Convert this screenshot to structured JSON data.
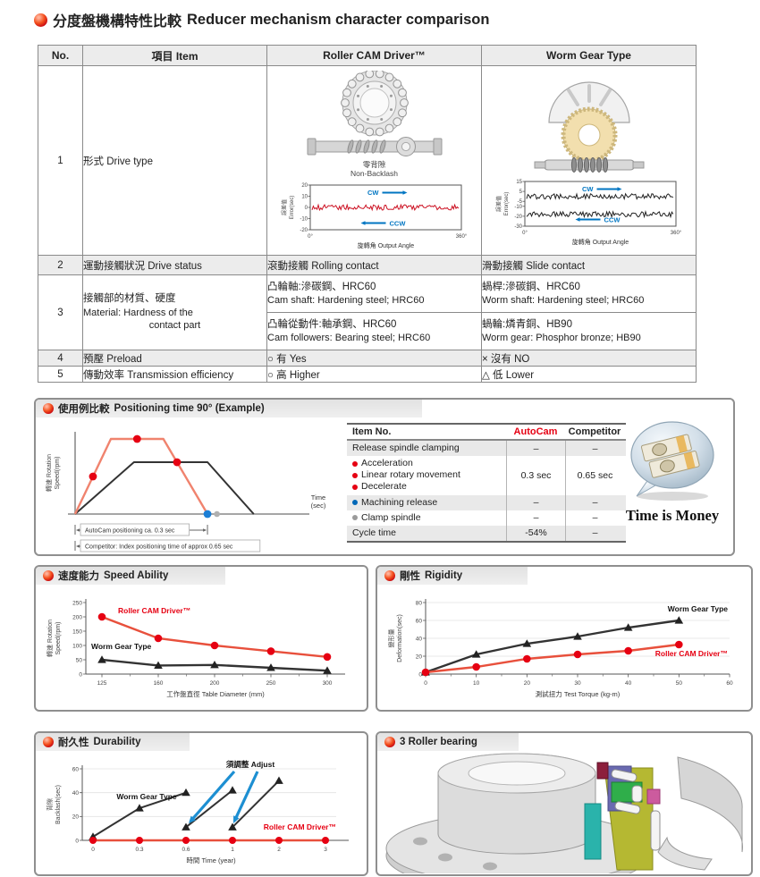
{
  "page": {
    "title_zh": "分度盤機構特性比較",
    "title_en": "Reducer mechanism character comparison"
  },
  "colors": {
    "accent_red": "#e60012",
    "arrow_blue": "#0075c2",
    "salmon": "#f0836e",
    "row_gray": "#ececec"
  },
  "comparison_table": {
    "headers": {
      "no": "No.",
      "item": "項目 Item",
      "roller": "Roller CAM Driver™",
      "worm": "Worm Gear Type"
    },
    "row1": {
      "no": "1",
      "item": "形式 Drive type",
      "roller_caption_zh": "零背隙",
      "roller_caption_en": "Non-Backlash"
    },
    "row2": {
      "no": "2",
      "item": "運動接觸狀況 Drive status",
      "roller": "滾動接觸 Rolling contact",
      "worm": "滑動接觸 Slide contact"
    },
    "row3": {
      "no": "3",
      "item_zh": "接觸部的材質、硬度",
      "item_en1": "Material: Hardness of the",
      "item_en2": "contact part",
      "roller_a_zh": "凸輪軸:滲碳鋼、HRC60",
      "roller_a_en": "Cam shaft: Hardening steel; HRC60",
      "worm_a_zh": "蝸桿:滲碳鋼、HRC60",
      "worm_a_en": "Worm shaft: Hardening steel; HRC60",
      "roller_b_zh": "凸輪從動件:軸承鋼、HRC60",
      "roller_b_en": "Cam followers: Bearing steel; HRC60",
      "worm_b_zh": "蝸輪:燐青銅、HB90",
      "worm_b_en": "Worm gear: Phosphor bronze; HB90"
    },
    "row4": {
      "no": "4",
      "item": "預壓 Preload",
      "roller": "○ 有 Yes",
      "worm": "× 沒有 NO"
    },
    "row5": {
      "no": "5",
      "item": "傳動效率 Transmission efficiency",
      "roller": "○ 高 Higher",
      "worm": "△ 低 Lower"
    }
  },
  "sections": {
    "positioning": {
      "zh": "使用例比較",
      "en": "Positioning time 90° (Example)"
    },
    "speed": {
      "zh": "速度能力",
      "en": "Speed Ability"
    },
    "rigidity": {
      "zh": "剛性",
      "en": "Rigidity"
    },
    "durability": {
      "zh": "耐久性",
      "en": "Durability"
    },
    "bearing": {
      "zh": "",
      "en": "3 Roller bearing"
    }
  },
  "positioning": {
    "table": {
      "headers": {
        "item": "Item No.",
        "autocam": "AutoCam",
        "competitor": "Competitor"
      },
      "rows": [
        {
          "labels": [
            {
              "text": "Release spindle clamping",
              "bullet": ""
            }
          ],
          "autocam": "–",
          "competitor": "–",
          "shaded": true
        },
        {
          "labels": [
            {
              "text": "Acceleration",
              "bullet": "#e60012"
            },
            {
              "text": "Linear rotary movement",
              "bullet": "#e60012"
            },
            {
              "text": "Decelerate",
              "bullet": "#e60012"
            }
          ],
          "autocam": "0.3 sec",
          "competitor": "0.65 sec",
          "shaded": false
        },
        {
          "labels": [
            {
              "text": "Machining release",
              "bullet": "#0068b7"
            }
          ],
          "autocam": "–",
          "competitor": "–",
          "shaded": true
        },
        {
          "labels": [
            {
              "text": "Clamp spindle",
              "bullet": "#9b9b9b"
            }
          ],
          "autocam": "–",
          "competitor": "–",
          "shaded": false
        },
        {
          "labels": [
            {
              "text": "Cycle time",
              "bullet": ""
            }
          ],
          "autocam": "-54%",
          "competitor": "–",
          "shaded": true
        }
      ]
    },
    "money_caption": "Time is Money"
  },
  "chart_data": {
    "roller_error": {
      "type": "line",
      "xlabel": "旋轉角 Output Angle",
      "ylabel_lines": [
        "誤差值",
        "Error(sec)"
      ],
      "x_ticks": [
        "0°",
        "360°"
      ],
      "ylim": [
        -20,
        20
      ],
      "y_ticks": [
        20,
        10,
        0,
        -10,
        -20
      ],
      "cw_label": "CW",
      "ccw_label": "CCW",
      "series": [
        {
          "name": "error",
          "mean": 0,
          "amplitude": 2,
          "color": "#cc1122"
        }
      ]
    },
    "worm_error": {
      "type": "line",
      "xlabel": "旋轉角 Output Angle",
      "ylabel_lines": [
        "誤差值",
        "Error(sec)"
      ],
      "x_ticks": [
        "0°",
        "360°"
      ],
      "ylim": [
        -30,
        15
      ],
      "y_ticks": [
        15,
        5,
        -5,
        -10,
        -20,
        -30
      ],
      "cw_label": "CW",
      "ccw_label": "CCW",
      "series": [
        {
          "name": "cw-error",
          "mean": 0,
          "amplitude": 2,
          "color": "#222222"
        },
        {
          "name": "ccw-error",
          "mean": -18,
          "amplitude": 2,
          "color": "#222222"
        }
      ]
    },
    "positioning": {
      "type": "line",
      "ylabel_lines": [
        "轉速 Rotation",
        "Speed(rpm)"
      ],
      "xlabel_lines": [
        "Time",
        "(sec)"
      ],
      "autocam": {
        "name": "AutoCam",
        "color": "#f0836e",
        "profile": [
          [
            0,
            0
          ],
          [
            0.17,
            1
          ],
          [
            0.42,
            1
          ],
          [
            0.63,
            0
          ]
        ],
        "dot_color": "#e60012",
        "dots": [
          [
            0.085,
            0.5
          ],
          [
            0.295,
            1
          ],
          [
            0.485,
            0.69
          ]
        ]
      },
      "competitor": {
        "name": "Competitor",
        "color": "#333333",
        "profile": [
          [
            0,
            0
          ],
          [
            0.28,
            0.69
          ],
          [
            0.63,
            0.69
          ],
          [
            0.85,
            0
          ]
        ]
      },
      "machining_dot": {
        "color": "#1c7fd6",
        "x": 0.63
      },
      "clamp_dot": {
        "color": "#b0b0b0",
        "x": 0.675
      },
      "annotations": [
        {
          "text": "AutoCam positioning ca. 0.3 sec",
          "x_end": 0.63
        },
        {
          "text": "Competitor: Index positioning time of approx 0.65 sec",
          "x_end": 0.85
        }
      ]
    },
    "speed": {
      "type": "line",
      "xlabel": "工作盤直徑 Table Diameter (mm)",
      "ylabel_lines": [
        "轉速 Rotation",
        "Speed(rpm)"
      ],
      "categories": [
        "125",
        "160",
        "200",
        "250",
        "300"
      ],
      "ylim": [
        0,
        250
      ],
      "y_ticks": [
        0,
        50,
        100,
        150,
        200,
        250
      ],
      "series": [
        {
          "name": "Roller CAM Driver™",
          "color": "#e8503c",
          "marker": "circle",
          "marker_color": "#e60012",
          "label_color": "#e60012",
          "values": [
            200,
            125,
            100,
            80,
            60
          ]
        },
        {
          "name": "Worm Gear Type",
          "color": "#333333",
          "marker": "triangle",
          "marker_color": "#222222",
          "label_color": "#111111",
          "values": [
            50,
            30,
            32,
            22,
            12
          ]
        }
      ]
    },
    "rigidity": {
      "type": "line",
      "xlabel": "測試扭力 Test Torque (kg-m)",
      "ylabel_lines": [
        "變形量",
        "Deformation(sec)"
      ],
      "xlim": [
        0,
        60
      ],
      "x_ticks": [
        0,
        10,
        20,
        30,
        40,
        50,
        60
      ],
      "ylim": [
        0,
        80
      ],
      "y_ticks": [
        0,
        20,
        40,
        60,
        80
      ],
      "series": [
        {
          "name": "Worm Gear Type",
          "color": "#333333",
          "marker": "triangle",
          "marker_color": "#222222",
          "label_color": "#111111",
          "points": [
            [
              0,
              2
            ],
            [
              10,
              22
            ],
            [
              20,
              34
            ],
            [
              30,
              42
            ],
            [
              40,
              52
            ],
            [
              50,
              60
            ]
          ]
        },
        {
          "name": "Roller CAM Driver™",
          "color": "#e8503c",
          "marker": "circle",
          "marker_color": "#e60012",
          "label_color": "#e60012",
          "points": [
            [
              0,
              2
            ],
            [
              10,
              8
            ],
            [
              20,
              17
            ],
            [
              30,
              22
            ],
            [
              40,
              26
            ],
            [
              50,
              33
            ]
          ]
        }
      ]
    },
    "durability": {
      "type": "line",
      "xlabel": "時間 Time (year)",
      "ylabel_lines": [
        "背隙",
        "Backlash(sec)"
      ],
      "categories": [
        "0",
        "0.3",
        "0.6",
        "1",
        "2",
        "3"
      ],
      "ylim": [
        0,
        60
      ],
      "y_ticks": [
        0,
        20,
        40,
        60
      ],
      "adjust_label": "須調整 Adjust",
      "adjust_color": "#1d8fd2",
      "worm": {
        "name": "Worm Gear Type",
        "color": "#333333",
        "segments": [
          [
            [
              0,
              3
            ],
            [
              1,
              27
            ],
            [
              2,
              40
            ]
          ],
          [
            [
              2,
              11
            ],
            [
              3,
              42
            ]
          ],
          [
            [
              3,
              11
            ],
            [
              4,
              50
            ]
          ]
        ]
      },
      "roller": {
        "name": "Roller CAM Driver™",
        "color": "#e8503c",
        "dot_color": "#e60012",
        "values": [
          0,
          0,
          0,
          0,
          0,
          0
        ]
      }
    }
  }
}
